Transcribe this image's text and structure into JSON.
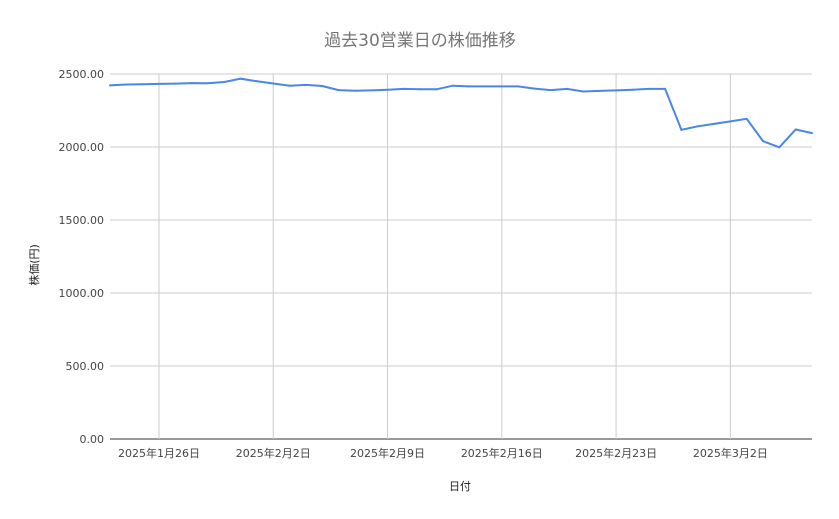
{
  "chart_data": {
    "type": "line",
    "title": "過去30営業日の株価推移",
    "xlabel": "日付",
    "ylabel": "株価(円)",
    "ylim": [
      0,
      2500
    ],
    "yticks": [
      "0.00",
      "500.00",
      "1000.00",
      "1500.00",
      "2000.00",
      "2500.00"
    ],
    "xticks": [
      {
        "date": "2025-01-26",
        "label": "2025年1月26日"
      },
      {
        "date": "2025-02-02",
        "label": "2025年2月2日"
      },
      {
        "date": "2025-02-09",
        "label": "2025年2月9日"
      },
      {
        "date": "2025-02-16",
        "label": "2025年2月16日"
      },
      {
        "date": "2025-02-23",
        "label": "2025年2月23日"
      },
      {
        "date": "2025-03-02",
        "label": "2025年3月2日"
      }
    ],
    "xlim": [
      "2025-01-23",
      "2025-03-07"
    ],
    "grid": true,
    "line_color": "#4a86e8",
    "series": [
      {
        "x": [
          "2025-01-23",
          "2025-01-24",
          "2025-01-25",
          "2025-01-26",
          "2025-01-27",
          "2025-01-28",
          "2025-01-29",
          "2025-01-30",
          "2025-01-31",
          "2025-02-01",
          "2025-02-02",
          "2025-02-03",
          "2025-02-04",
          "2025-02-05",
          "2025-02-06",
          "2025-02-07",
          "2025-02-08",
          "2025-02-09",
          "2025-02-10",
          "2025-02-11",
          "2025-02-12",
          "2025-02-13",
          "2025-02-14",
          "2025-02-15",
          "2025-02-16",
          "2025-02-17",
          "2025-02-18",
          "2025-02-19",
          "2025-02-20",
          "2025-02-21",
          "2025-02-22",
          "2025-02-23",
          "2025-02-24",
          "2025-02-25",
          "2025-02-26",
          "2025-02-27",
          "2025-02-28",
          "2025-03-01",
          "2025-03-02",
          "2025-03-03",
          "2025-03-04",
          "2025-03-05",
          "2025-03-06",
          "2025-03-07"
        ],
        "values": [
          2422,
          2428,
          2430,
          2432,
          2434,
          2438,
          2437,
          2445,
          2468,
          2450,
          2435,
          2420,
          2425,
          2418,
          2390,
          2385,
          2388,
          2392,
          2398,
          2396,
          2395,
          2420,
          2415,
          2415,
          2415,
          2415,
          2400,
          2390,
          2398,
          2380,
          2384,
          2388,
          2392,
          2398,
          2398,
          2118,
          2142,
          2158,
          2175,
          2193,
          2040,
          1998,
          2120,
          2095
        ]
      }
    ]
  }
}
